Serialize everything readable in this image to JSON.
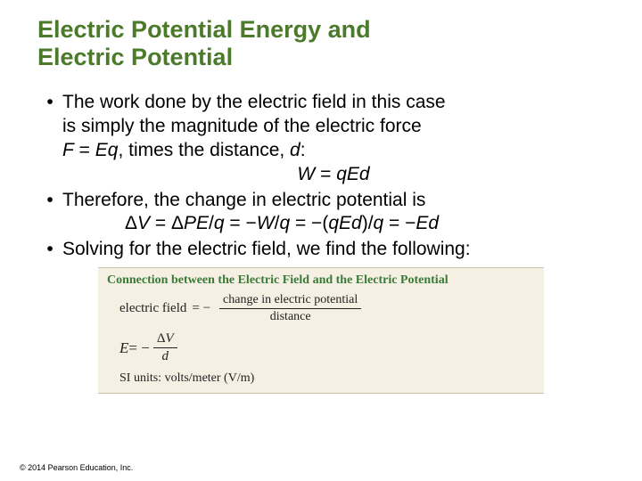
{
  "title_color": "#4a7a2a",
  "title_line1": "Electric Potential Energy and",
  "title_line2": "Electric Potential",
  "bullet1_a": "The work done by the electric field in this case",
  "bullet1_b": "is simply the magnitude of the electric force",
  "bullet1_c_prefix": "F",
  "bullet1_c_mid": " = ",
  "bullet1_c_eq": "Eq",
  "bullet1_c_after": ", times the distance, ",
  "bullet1_c_d": "d",
  "bullet1_c_colon": ":",
  "eq1_lhs": "W",
  "eq1_eq": " = ",
  "eq1_rhs": "qEd",
  "bullet2": "Therefore, the change in electric potential is",
  "eq2_a": "Δ",
  "eq2_b": "V",
  "eq2_c": " = Δ",
  "eq2_d": "PE",
  "eq2_e": "/",
  "eq2_f": "q",
  "eq2_g": " = −",
  "eq2_h": "W",
  "eq2_i": "/",
  "eq2_j": "q",
  "eq2_k": " = −(",
  "eq2_l": "qEd",
  "eq2_m": ")/",
  "eq2_n": "q",
  "eq2_o": " = −",
  "eq2_p": "Ed",
  "bullet3": "Solving for the electric field, we find the following:",
  "box_header": "Connection between the Electric Field and the Electric Potential",
  "box_lhs1": "electric field",
  "box_eq1": "=  −",
  "box_num1": "change in electric potential",
  "box_den1": "distance",
  "box_lhs2": "E",
  "box_eq2": " = −",
  "box_num2": "ΔV",
  "box_den2": "d",
  "box_units": "SI units: volts/meter (V/m)",
  "copyright": "© 2014 Pearson Education, Inc."
}
